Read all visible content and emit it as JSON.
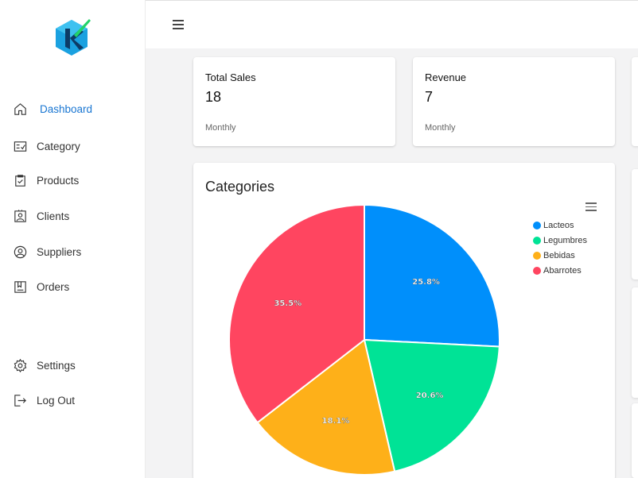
{
  "sidebar": {
    "items": [
      {
        "label": "Dashboard",
        "icon": "home-icon"
      },
      {
        "label": "Category",
        "icon": "checklist-icon"
      },
      {
        "label": "Products",
        "icon": "clipboard-icon"
      },
      {
        "label": "Clients",
        "icon": "contact-icon"
      },
      {
        "label": "Suppliers",
        "icon": "user-circle-icon"
      },
      {
        "label": "Orders",
        "icon": "bookmark-box-icon"
      },
      {
        "label": "Settings",
        "icon": "gear-icon"
      },
      {
        "label": "Log Out",
        "icon": "logout-icon"
      }
    ]
  },
  "cards": {
    "sales": {
      "title": "Total Sales",
      "value": "18",
      "period": "Monthly"
    },
    "revenue": {
      "title": "Revenue",
      "value": "7",
      "period": "Monthly"
    }
  },
  "chart_data": {
    "type": "pie",
    "title": "Categories",
    "legend_position": "top-right",
    "categories": [
      "Lacteos",
      "Legumbres",
      "Bebidas",
      "Abarrotes"
    ],
    "values": [
      25.8,
      20.6,
      18.1,
      35.5
    ],
    "labels": [
      "25.8%",
      "20.6%",
      "18.1%",
      "35.5%"
    ],
    "colors": [
      "#008ffb",
      "#00e396",
      "#feb019",
      "#ff4560"
    ]
  },
  "colors": {
    "accent": "#1976d2",
    "background": "#f3f3f4"
  }
}
